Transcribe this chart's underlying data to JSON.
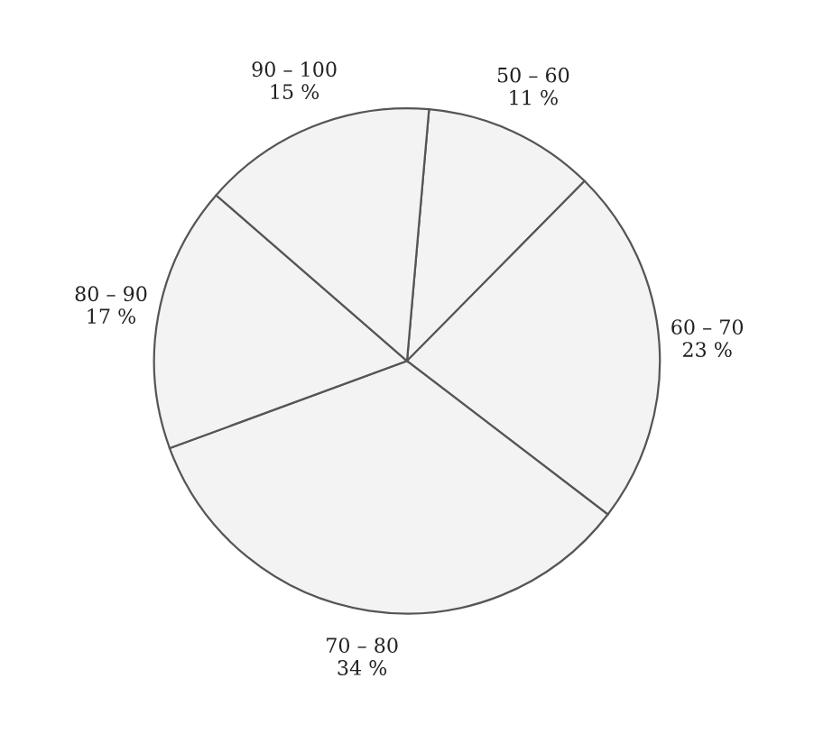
{
  "chart_data": {
    "type": "pie",
    "categories": [
      "50 – 60",
      "60 – 70",
      "70 – 80",
      "80 – 90",
      "90 – 100"
    ],
    "values": [
      11,
      23,
      34,
      17,
      15
    ],
    "value_labels": [
      "11 %",
      "23 %",
      "34 %",
      "17 %",
      "15 %"
    ],
    "colors": [
      "#f3f3f3",
      "#f3f3f3",
      "#f3f3f3",
      "#f3f3f3",
      "#f3f3f3"
    ],
    "legend": false
  }
}
